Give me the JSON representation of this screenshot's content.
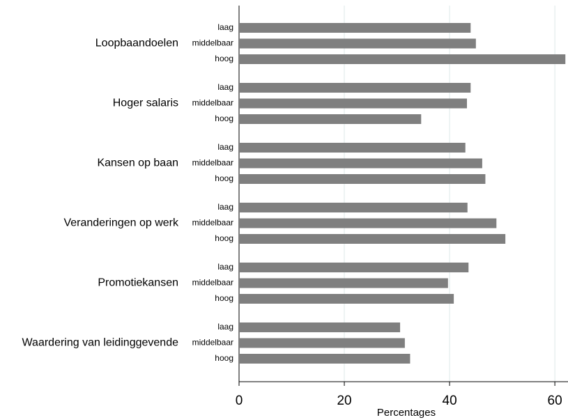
{
  "chart_data": {
    "type": "bar",
    "orientation": "horizontal",
    "color": "#7f7f7f",
    "grid": true,
    "xlabel": "Percentages",
    "xlim": [
      0,
      62.5
    ],
    "xticks": [
      0,
      20,
      40,
      60
    ],
    "groups": [
      {
        "name": "Loopbaandoelen",
        "categories": [
          "laag",
          "middelbaar",
          "hoog"
        ],
        "values": [
          44.0,
          45.0,
          62.0
        ]
      },
      {
        "name": "Hoger salaris",
        "categories": [
          "laag",
          "middelbaar",
          "hoog"
        ],
        "values": [
          44.0,
          43.3,
          34.6
        ]
      },
      {
        "name": "Kansen op baan",
        "categories": [
          "laag",
          "middelbaar",
          "hoog"
        ],
        "values": [
          43.0,
          46.2,
          46.8
        ]
      },
      {
        "name": "Veranderingen op werk",
        "categories": [
          "laag",
          "middelbaar",
          "hoog"
        ],
        "values": [
          43.4,
          48.9,
          50.6
        ]
      },
      {
        "name": "Promotiekansen",
        "categories": [
          "laag",
          "middelbaar",
          "hoog"
        ],
        "values": [
          43.6,
          39.7,
          40.8
        ]
      },
      {
        "name": "Waardering van leidinggevende",
        "categories": [
          "laag",
          "middelbaar",
          "hoog"
        ],
        "values": [
          30.6,
          31.5,
          32.5
        ]
      }
    ]
  }
}
